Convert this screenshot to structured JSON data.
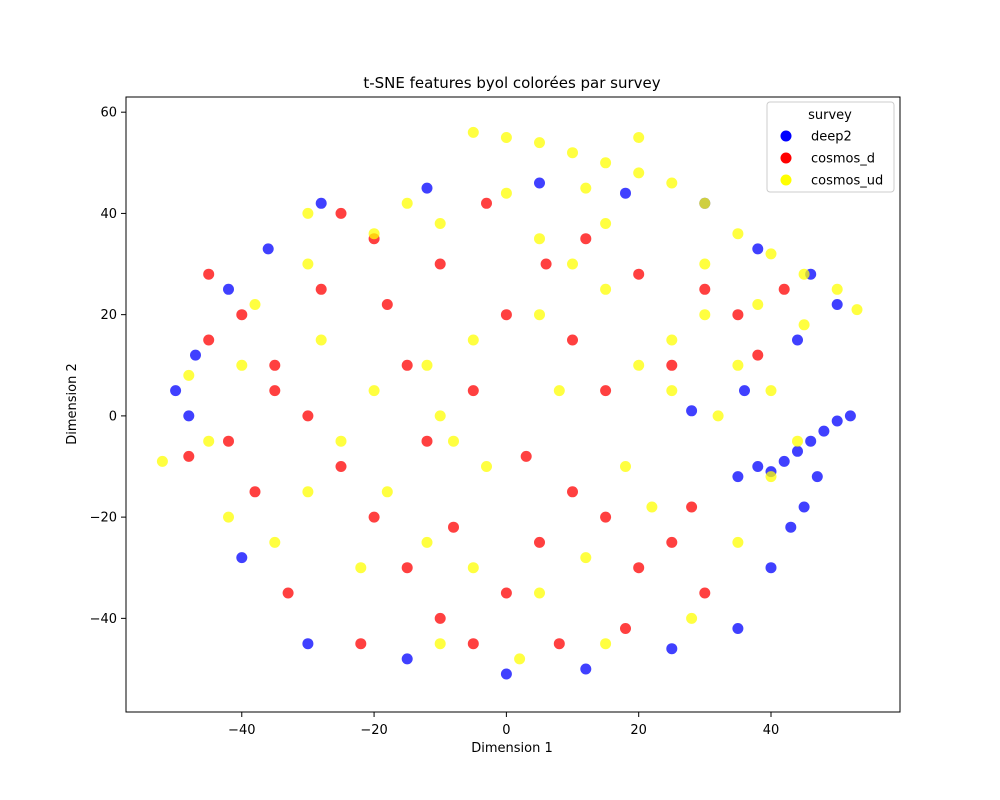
{
  "chart_data": {
    "type": "scatter",
    "title": "t-SNE features byol colorées par survey",
    "xlabel": "Dimension 1",
    "ylabel": "Dimension 2",
    "xlim": [
      -57.5,
      59.5
    ],
    "ylim": [
      -58.5,
      63
    ],
    "xticks": [
      -40,
      -20,
      0,
      20,
      40
    ],
    "yticks": [
      -40,
      -20,
      0,
      20,
      40,
      60
    ],
    "grid": false,
    "legend": {
      "title": "survey",
      "position": "upper right",
      "entries": [
        {
          "name": "deep2",
          "color": "#0000ff"
        },
        {
          "name": "cosmos_d",
          "color": "#ff0000"
        },
        {
          "name": "cosmos_ud",
          "color": "#ffff00"
        }
      ]
    },
    "series": [
      {
        "name": "deep2",
        "color": "#0000ff",
        "points": [
          [
            52,
            0
          ],
          [
            50,
            -1
          ],
          [
            48,
            -3
          ],
          [
            46,
            -5
          ],
          [
            44,
            -7
          ],
          [
            42,
            -9
          ],
          [
            40,
            -11
          ],
          [
            47,
            -12
          ],
          [
            45,
            -18
          ],
          [
            43,
            -22
          ],
          [
            38,
            -10
          ],
          [
            35,
            -12
          ],
          [
            -48,
            0
          ],
          [
            -50,
            5
          ],
          [
            -47,
            12
          ],
          [
            -42,
            25
          ],
          [
            -36,
            33
          ],
          [
            -28,
            42
          ],
          [
            -12,
            45
          ],
          [
            5,
            46
          ],
          [
            18,
            44
          ],
          [
            30,
            42
          ],
          [
            38,
            33
          ],
          [
            46,
            28
          ],
          [
            50,
            22
          ],
          [
            44,
            15
          ],
          [
            36,
            5
          ],
          [
            28,
            1
          ],
          [
            -30,
            -45
          ],
          [
            -15,
            -48
          ],
          [
            0,
            -51
          ],
          [
            12,
            -50
          ],
          [
            25,
            -46
          ],
          [
            35,
            -42
          ],
          [
            40,
            -30
          ],
          [
            -40,
            -28
          ]
        ]
      },
      {
        "name": "cosmos_d",
        "color": "#ff0000",
        "points": [
          [
            -45,
            15
          ],
          [
            -40,
            20
          ],
          [
            -35,
            10
          ],
          [
            -30,
            0
          ],
          [
            -25,
            -10
          ],
          [
            -20,
            -20
          ],
          [
            -15,
            -30
          ],
          [
            -10,
            -40
          ],
          [
            -5,
            -45
          ],
          [
            0,
            -35
          ],
          [
            5,
            -25
          ],
          [
            10,
            -15
          ],
          [
            15,
            -20
          ],
          [
            20,
            -30
          ],
          [
            25,
            -25
          ],
          [
            30,
            -35
          ],
          [
            -38,
            -15
          ],
          [
            -42,
            -5
          ],
          [
            -28,
            25
          ],
          [
            -20,
            35
          ],
          [
            -10,
            30
          ],
          [
            0,
            20
          ],
          [
            10,
            15
          ],
          [
            -15,
            10
          ],
          [
            -5,
            5
          ],
          [
            15,
            5
          ],
          [
            20,
            28
          ],
          [
            30,
            25
          ],
          [
            35,
            20
          ],
          [
            -48,
            -8
          ],
          [
            -33,
            -35
          ],
          [
            -22,
            -45
          ],
          [
            8,
            -45
          ],
          [
            18,
            -42
          ],
          [
            28,
            -18
          ],
          [
            -45,
            28
          ],
          [
            12,
            35
          ],
          [
            38,
            12
          ],
          [
            42,
            25
          ],
          [
            -8,
            -22
          ],
          [
            -25,
            40
          ],
          [
            -3,
            42
          ],
          [
            6,
            30
          ],
          [
            25,
            10
          ],
          [
            -12,
            -5
          ],
          [
            3,
            -8
          ],
          [
            -35,
            5
          ],
          [
            -18,
            22
          ]
        ]
      },
      {
        "name": "cosmos_ud",
        "color": "#ffff00",
        "points": [
          [
            -5,
            56
          ],
          [
            0,
            55
          ],
          [
            5,
            54
          ],
          [
            10,
            52
          ],
          [
            15,
            50
          ],
          [
            20,
            48
          ],
          [
            25,
            46
          ],
          [
            30,
            42
          ],
          [
            35,
            36
          ],
          [
            40,
            32
          ],
          [
            45,
            28
          ],
          [
            50,
            25
          ],
          [
            53,
            21
          ],
          [
            30,
            20
          ],
          [
            25,
            15
          ],
          [
            20,
            10
          ],
          [
            35,
            10
          ],
          [
            45,
            18
          ],
          [
            15,
            25
          ],
          [
            10,
            30
          ],
          [
            -10,
            38
          ],
          [
            -20,
            36
          ],
          [
            -30,
            30
          ],
          [
            -38,
            22
          ],
          [
            -12,
            10
          ],
          [
            -5,
            15
          ],
          [
            5,
            35
          ],
          [
            40,
            5
          ],
          [
            25,
            5
          ],
          [
            -8,
            -5
          ],
          [
            -10,
            0
          ],
          [
            -25,
            -5
          ],
          [
            -30,
            -15
          ],
          [
            -18,
            -15
          ],
          [
            -12,
            -25
          ],
          [
            -5,
            -30
          ],
          [
            5,
            -35
          ],
          [
            12,
            -28
          ],
          [
            18,
            -10
          ],
          [
            22,
            -18
          ],
          [
            -35,
            -25
          ],
          [
            -45,
            -5
          ],
          [
            -52,
            -9
          ],
          [
            -40,
            10
          ],
          [
            -28,
            15
          ],
          [
            -15,
            42
          ],
          [
            0,
            44
          ],
          [
            15,
            38
          ],
          [
            30,
            30
          ],
          [
            38,
            22
          ],
          [
            8,
            5
          ],
          [
            -3,
            -10
          ],
          [
            -20,
            5
          ],
          [
            28,
            -40
          ],
          [
            35,
            -25
          ],
          [
            -22,
            -30
          ],
          [
            -10,
            -45
          ],
          [
            2,
            -48
          ],
          [
            15,
            -45
          ],
          [
            40,
            -12
          ],
          [
            44,
            -5
          ],
          [
            -42,
            -20
          ],
          [
            -48,
            8
          ],
          [
            20,
            55
          ],
          [
            12,
            45
          ],
          [
            32,
            0
          ],
          [
            -30,
            40
          ],
          [
            5,
            20
          ]
        ]
      }
    ]
  }
}
